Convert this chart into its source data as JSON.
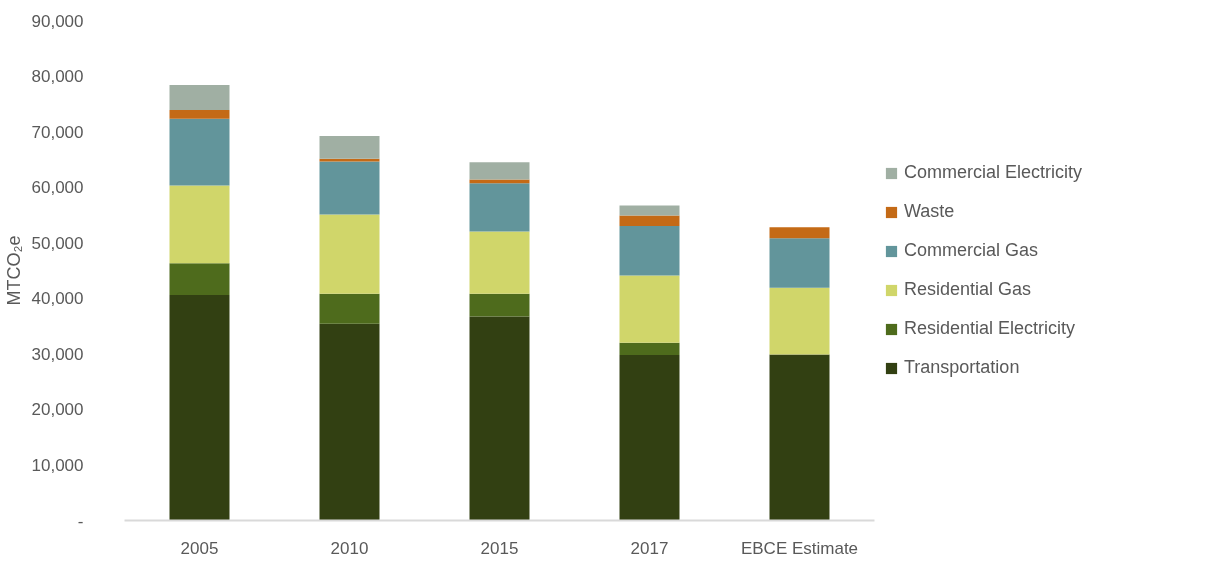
{
  "chart_data": {
    "type": "bar",
    "stacked": true,
    "ylabel": "MTCO₂e",
    "categories": [
      "2005",
      "2010",
      "2015",
      "2017",
      "EBCE Estimate"
    ],
    "ylim": [
      0,
      90000
    ],
    "yticks": [
      {
        "value": 0,
        "label": "-"
      },
      {
        "value": 10000,
        "label": "10,000"
      },
      {
        "value": 20000,
        "label": "20,000"
      },
      {
        "value": 30000,
        "label": "30,000"
      },
      {
        "value": 40000,
        "label": "40,000"
      },
      {
        "value": 50000,
        "label": "50,000"
      },
      {
        "value": 60000,
        "label": "60,000"
      },
      {
        "value": 70000,
        "label": "70,000"
      },
      {
        "value": 80000,
        "label": "80,000"
      },
      {
        "value": 90000,
        "label": "90,000"
      }
    ],
    "grid": false,
    "legend": "right",
    "series": [
      {
        "name": "Transportation",
        "color": "#324012",
        "values": [
          40600,
          35400,
          36700,
          29800,
          29900
        ]
      },
      {
        "name": "Residential Electricity",
        "color": "#4e6b1c",
        "values": [
          5700,
          5400,
          4100,
          2200,
          0
        ]
      },
      {
        "name": "Residential Gas",
        "color": "#d0d66a",
        "values": [
          14000,
          14300,
          11200,
          12100,
          12000
        ]
      },
      {
        "name": "Commercial Gas",
        "color": "#62959b",
        "values": [
          12000,
          9500,
          8700,
          8900,
          8900
        ]
      },
      {
        "name": "Waste",
        "color": "#c46a16",
        "values": [
          1600,
          500,
          700,
          1900,
          2000
        ]
      },
      {
        "name": "Commercial Electricity",
        "color": "#a0afa3",
        "values": [
          4500,
          4100,
          3100,
          1800,
          0
        ]
      }
    ]
  }
}
